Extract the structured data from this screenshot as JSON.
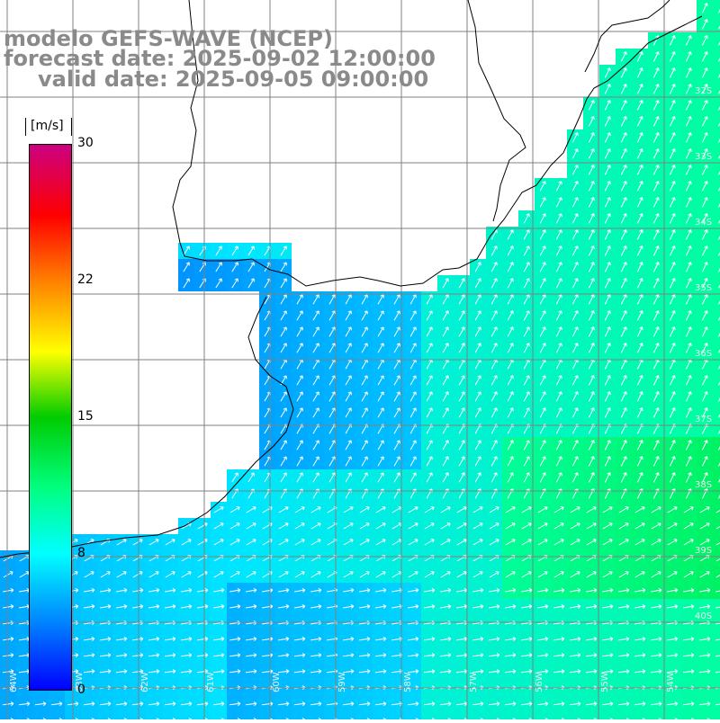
{
  "title": {
    "line1": "modelo GEFS-WAVE (NCEP)",
    "line2": "forecast date: 2025-09-02 12:00:00",
    "line3": "valid date: 2025-09-05 09:00:00"
  },
  "variable": "wind speed and direction",
  "colorbar": {
    "unit": "[m/s]",
    "ticks": [
      "30",
      "22",
      "15",
      "8",
      "0"
    ],
    "tick_values": [
      30,
      22,
      15,
      8,
      0
    ],
    "colors": [
      "#0000ff",
      "#0080ff",
      "#00ffff",
      "#00ff80",
      "#00cc00",
      "#ffff00",
      "#ff8000",
      "#ff0000",
      "#cc0080"
    ]
  },
  "grid": {
    "lat_labels": [
      "32S",
      "33S",
      "34S",
      "35S",
      "36S",
      "37S",
      "38S",
      "39S",
      "40S"
    ],
    "lon_labels": [
      "64W",
      "63W",
      "62W",
      "61W",
      "60W",
      "59W",
      "58W",
      "57W",
      "56W",
      "55W",
      "54W"
    ]
  },
  "colors": {
    "land": "#ffffff",
    "grid_line": "#808080",
    "coast": "#000000",
    "arrow": "#ffffff",
    "title": "#8a8a8a"
  }
}
